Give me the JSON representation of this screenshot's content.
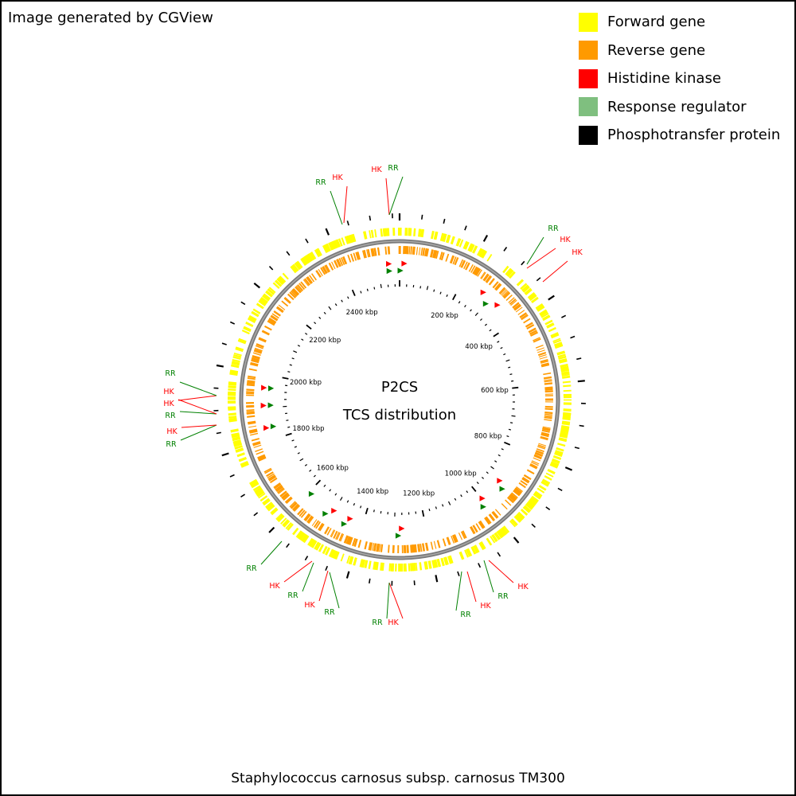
{
  "header": {
    "text": "Image generated by CGView"
  },
  "legend": [
    {
      "label": "Forward gene",
      "color": "#FFFF00"
    },
    {
      "label": "Reverse gene",
      "color": "#FF9A00"
    },
    {
      "label": "Histidine kinase",
      "color": "#FF0000"
    },
    {
      "label": "Response regulator",
      "color": "#7FBF7F"
    },
    {
      "label": "Phosphotransfer protein",
      "color": "#000000"
    }
  ],
  "map": {
    "title": "P2CS",
    "subtitle": "TCS distribution",
    "genome_length_kbp": 2566,
    "scale_labels": [
      "200 kbp",
      "400 kbp",
      "600 kbp",
      "800 kbp",
      "1000 kbp",
      "1200 kbp",
      "1400 kbp",
      "1600 kbp",
      "1800 kbp",
      "2000 kbp",
      "2200 kbp",
      "2400 kbp"
    ],
    "tcs_labels": [
      {
        "text": "RR",
        "type": "RR"
      },
      {
        "text": "HK",
        "type": "HK"
      },
      {
        "text": "HK",
        "type": "HK"
      },
      {
        "text": "RR",
        "type": "RR"
      },
      {
        "text": "RR",
        "type": "RR"
      },
      {
        "text": "HK",
        "type": "HK"
      },
      {
        "text": "HK",
        "type": "HK"
      },
      {
        "text": "RR",
        "type": "RR"
      },
      {
        "text": "HK",
        "type": "HK"
      },
      {
        "text": "RR",
        "type": "RR"
      },
      {
        "text": "HK",
        "type": "HK"
      },
      {
        "text": "RR",
        "type": "RR"
      },
      {
        "text": "HK",
        "type": "HK"
      },
      {
        "text": "RR",
        "type": "RR"
      },
      {
        "text": "HK",
        "type": "HK"
      },
      {
        "text": "RR",
        "type": "RR"
      },
      {
        "text": "RR",
        "type": "RR"
      },
      {
        "text": "RR",
        "type": "RR"
      },
      {
        "text": "HK",
        "type": "HK"
      },
      {
        "text": "HK",
        "type": "HK"
      },
      {
        "text": "RR",
        "type": "RR"
      },
      {
        "text": "HK",
        "type": "HK"
      },
      {
        "text": "RR",
        "type": "RR"
      }
    ]
  },
  "footer": {
    "text": "Staphylococcus carnosus subsp. carnosus TM300"
  },
  "colors": {
    "hk": "#FF0000",
    "rr": "#008000",
    "backbone": "#808080",
    "forward": "#FFFF00",
    "reverse": "#FF9A00"
  }
}
